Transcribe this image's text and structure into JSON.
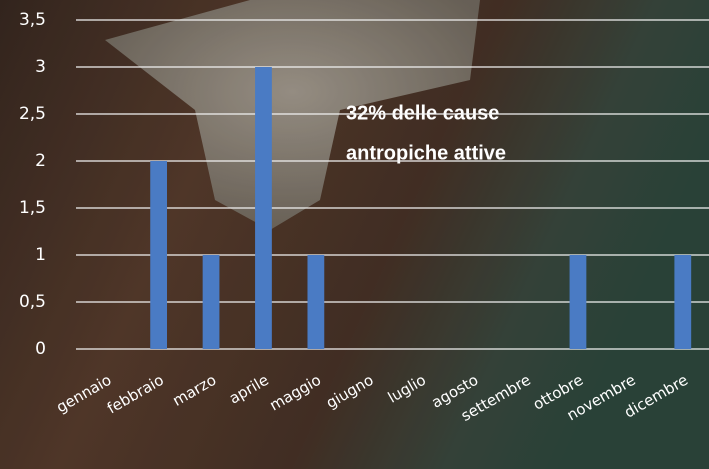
{
  "chart_data": {
    "type": "bar",
    "categories": [
      "gennaio",
      "febbraio",
      "marzo",
      "aprile",
      "maggio",
      "giugno",
      "luglio",
      "agosto",
      "settembre",
      "ottobre",
      "novembre",
      "dicembre"
    ],
    "values": [
      0,
      2,
      1,
      3,
      1,
      0,
      0,
      0,
      0,
      1,
      0,
      1
    ],
    "color": "#4a7bc4",
    "ylim": [
      0,
      3.5
    ],
    "yticks": [
      0,
      {
        "value": 0.5,
        "label": "0,5"
      },
      1,
      {
        "value": 1.5,
        "label": "1,5"
      },
      2,
      {
        "value": 2.5,
        "label": "2,5"
      },
      3,
      {
        "value": 3.5,
        "label": "3,5"
      }
    ],
    "grid": true,
    "annotation": [
      "32% delle cause",
      "antropiche attive"
    ]
  }
}
